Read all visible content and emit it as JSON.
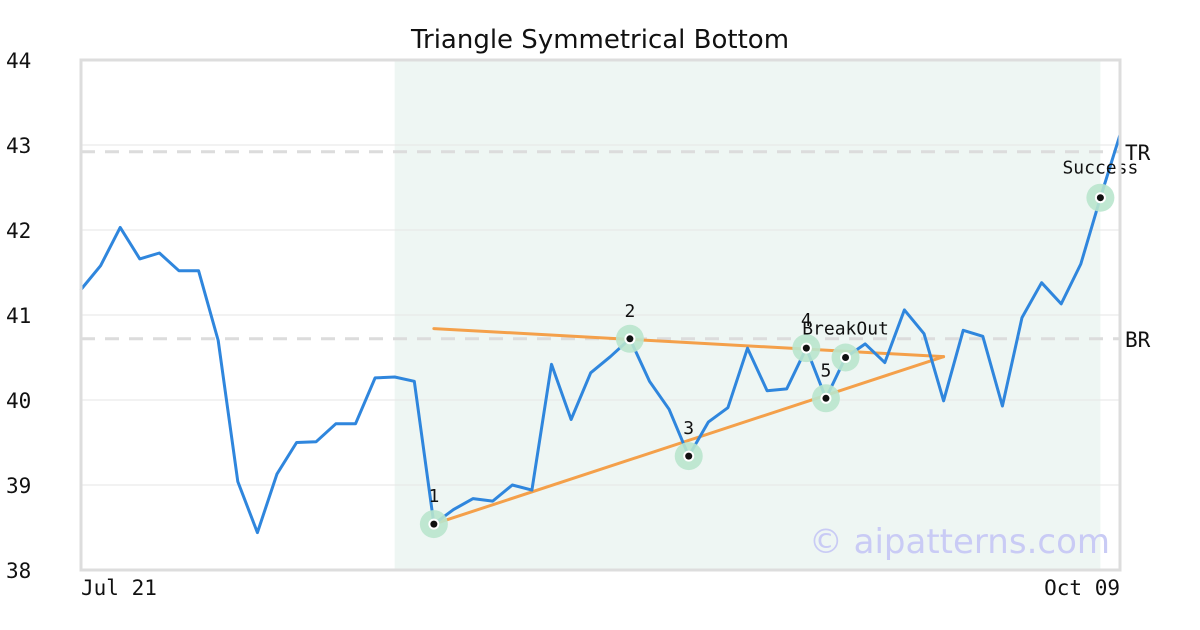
{
  "chart_data": {
    "type": "line",
    "title": "Triangle Symmetrical Bottom",
    "xlabel": "",
    "ylabel": "",
    "ylim": [
      38,
      44
    ],
    "y_ticks": [
      38,
      39,
      40,
      41,
      42,
      43,
      44
    ],
    "x_tick_labels": [
      "Jul 21",
      "Oct 09"
    ],
    "grid": true,
    "series": [
      {
        "color": "#2f86dd",
        "values": [
          41.3,
          41.58,
          42.03,
          41.66,
          41.73,
          41.52,
          41.52,
          40.7,
          39.04,
          38.44,
          39.13,
          39.5,
          39.51,
          39.72,
          39.72,
          40.26,
          40.27,
          40.22,
          38.54,
          38.71,
          38.84,
          38.81,
          39.0,
          38.94,
          40.42,
          39.77,
          40.32,
          40.51,
          40.72,
          40.22,
          39.89,
          39.34,
          39.74,
          39.91,
          40.61,
          40.11,
          40.13,
          40.61,
          40.02,
          40.5,
          40.66,
          40.44,
          41.06,
          40.78,
          39.99,
          40.82,
          40.75,
          39.93,
          40.97,
          41.38,
          41.13,
          41.6,
          42.38,
          43.12
        ]
      }
    ],
    "pattern_window": {
      "start_index": 16,
      "end_index": 52,
      "color": "#eef6f3"
    },
    "reference_lines": [
      {
        "label": "TR",
        "value": 42.92
      },
      {
        "label": "BR",
        "value": 40.72
      }
    ],
    "trendlines": [
      {
        "color": "#f4a04a",
        "from": {
          "index": 18,
          "value": 40.84
        },
        "to": {
          "index": 44,
          "value": 40.51
        }
      },
      {
        "color": "#f4a04a",
        "from": {
          "index": 18,
          "value": 38.54
        },
        "to": {
          "index": 44,
          "value": 40.51
        }
      }
    ],
    "points": [
      {
        "label": "1",
        "index": 18,
        "value": 38.54
      },
      {
        "label": "2",
        "index": 28,
        "value": 40.72
      },
      {
        "label": "3",
        "index": 31,
        "value": 39.34
      },
      {
        "label": "4",
        "index": 37,
        "value": 40.61
      },
      {
        "label": "5",
        "index": 38,
        "value": 40.02
      },
      {
        "label": "BreakOut",
        "index": 39,
        "value": 40.5
      },
      {
        "label": "Success",
        "index": 52,
        "value": 42.38
      }
    ],
    "watermark": "© aipatterns.com"
  }
}
